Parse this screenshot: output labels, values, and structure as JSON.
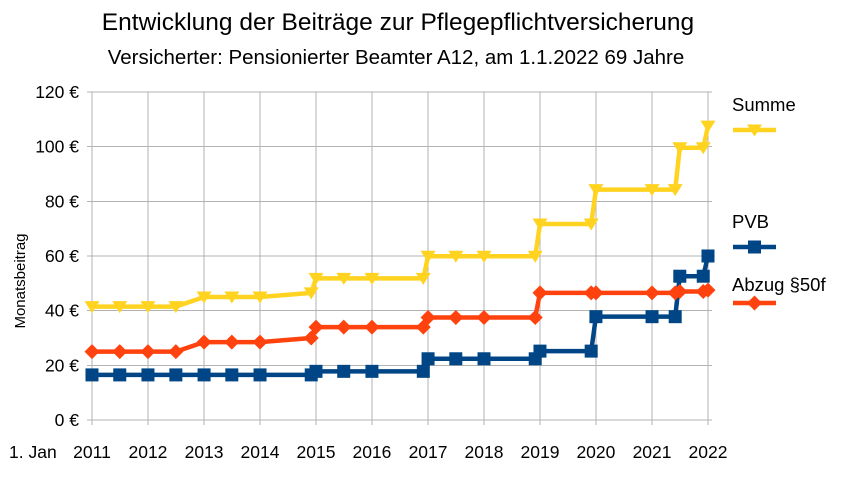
{
  "chart_data": {
    "type": "line",
    "title": "Entwicklung der Beiträge zur Pflegepflichtversicherung",
    "subtitle": "Versicherter: Pensionierter Beamter A12, am 1.1.2022 69 Jahre",
    "xlabel": "1. Jan",
    "ylabel": "Monatsbeitrag",
    "xlim": [
      "2011-01-01",
      "2022-01-01"
    ],
    "ylim": [
      0,
      120
    ],
    "x_ticks": [
      "2011-01-01",
      "2012-01-01",
      "2013-01-01",
      "2014-01-01",
      "2015-01-01",
      "2016-01-01",
      "2017-01-01",
      "2018-01-01",
      "2019-01-01",
      "2020-01-01",
      "2021-01-01",
      "2022-01-01"
    ],
    "x_tick_labels": [
      "2011",
      "2012",
      "2013",
      "2014",
      "2015",
      "2016",
      "2017",
      "2018",
      "2019",
      "2020",
      "2021",
      "2022"
    ],
    "y_ticks": [
      0,
      20,
      40,
      60,
      80,
      100,
      120
    ],
    "y_tick_labels": [
      "0 €",
      "20 €",
      "40 €",
      "60 €",
      "80 €",
      "100 €",
      "120 €"
    ],
    "grid": true,
    "legend_position": "right",
    "x": [
      "2011-01-01",
      "2011-07-01",
      "2012-01-01",
      "2012-07-01",
      "2013-01-01",
      "2013-07-01",
      "2014-01-01",
      "2014-12-01",
      "2015-01-01",
      "2015-07-01",
      "2016-01-01",
      "2016-12-01",
      "2017-01-01",
      "2017-07-01",
      "2018-01-01",
      "2018-12-01",
      "2019-01-01",
      "2019-12-01",
      "2020-01-01",
      "2021-01-01",
      "2021-06-01",
      "2021-07-01",
      "2021-12-01",
      "2022-01-01"
    ],
    "series": [
      {
        "name": "Summe",
        "color": "#FFD320",
        "marker": "triangle-down",
        "values": [
          41.5,
          41.5,
          41.5,
          41.5,
          45,
          45,
          45,
          46.5,
          51.8,
          51.8,
          51.8,
          51.8,
          59.9,
          59.9,
          59.9,
          59.9,
          71.7,
          71.7,
          84.3,
          84.3,
          84.3,
          99.6,
          99.6,
          107.5
        ]
      },
      {
        "name": "PVB",
        "color": "#004586",
        "marker": "square",
        "values": [
          16.5,
          16.5,
          16.5,
          16.5,
          16.5,
          16.5,
          16.5,
          16.5,
          17.8,
          17.8,
          17.8,
          17.8,
          22.4,
          22.4,
          22.4,
          22.4,
          25.2,
          25.2,
          37.8,
          37.8,
          37.8,
          52.6,
          52.6,
          60
        ]
      },
      {
        "name": "Abzug §50f",
        "color": "#FF420E",
        "marker": "diamond",
        "values": [
          25,
          25,
          25,
          25,
          28.5,
          28.5,
          28.5,
          30,
          34,
          34,
          34,
          34,
          37.5,
          37.5,
          37.5,
          37.5,
          46.5,
          46.5,
          46.5,
          46.5,
          46.5,
          47,
          47,
          47.5
        ]
      }
    ]
  }
}
